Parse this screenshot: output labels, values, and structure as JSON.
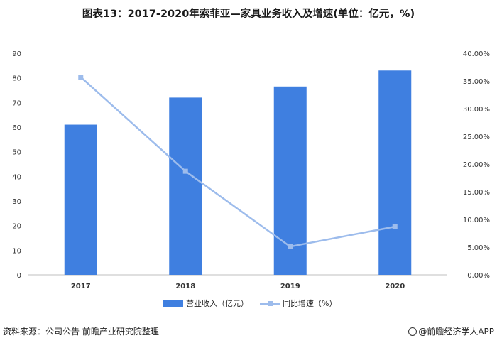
{
  "chart_data": {
    "type": "bar+line",
    "title": "图表13：2017-2020年索菲亚—家具业务收入及增速(单位：亿元，%)",
    "categories": [
      "2017",
      "2018",
      "2019",
      "2020"
    ],
    "series": [
      {
        "name": "营业收入（亿元）",
        "type": "bar",
        "axis": "left",
        "values": [
          61,
          72,
          76.5,
          83
        ]
      },
      {
        "name": "同比增速（%）",
        "type": "line",
        "axis": "right",
        "values": [
          35.7,
          18.7,
          5.1,
          8.7
        ]
      }
    ],
    "y_left": {
      "min": 0,
      "max": 90,
      "ticks": [
        "0",
        "10",
        "20",
        "30",
        "40",
        "50",
        "60",
        "70",
        "80",
        "90"
      ]
    },
    "y_right": {
      "min": 0,
      "max": 40,
      "ticks": [
        "0.00%",
        "5.00%",
        "10.00%",
        "15.00%",
        "20.00%",
        "25.00%",
        "30.00%",
        "35.00%",
        "40.00%"
      ]
    },
    "grid": false,
    "legend": "bottom",
    "colors": {
      "bar": "#3f7fe0",
      "line": "#9dbcec"
    }
  },
  "footer": {
    "source": "资料来源：公司公告 前瞻产业研究院整理",
    "brand": "@前瞻经济学人APP"
  }
}
